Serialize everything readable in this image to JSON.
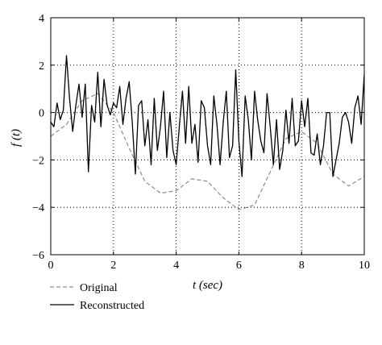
{
  "chart_data": {
    "type": "line",
    "xlabel": "t (sec)",
    "ylabel": "f (t)",
    "xlim": [
      0,
      10
    ],
    "ylim": [
      -6,
      4
    ],
    "x_ticks": [
      "0",
      "2",
      "4",
      "6",
      "8",
      "10"
    ],
    "y_ticks": [
      "4",
      "2",
      "0",
      "−2",
      "−4",
      "−6"
    ],
    "grid": true,
    "legend_placement": "below-left",
    "series": [
      {
        "name": "Original",
        "style": "dashed",
        "color": "#8c8c8c",
        "x": [
          0,
          0.5,
          1,
          1.5,
          2,
          2.5,
          3,
          3.5,
          4,
          4.5,
          5,
          5.5,
          6,
          6.5,
          7,
          7.5,
          8,
          8.5,
          9,
          9.5,
          10
        ],
        "y": [
          -1.0,
          -0.5,
          0.5,
          0.8,
          0.0,
          -1.5,
          -2.9,
          -3.4,
          -3.3,
          -2.8,
          -2.9,
          -3.6,
          -4.1,
          -3.9,
          -2.5,
          -1.1,
          -0.8,
          -1.3,
          -2.6,
          -3.1,
          -2.7
        ]
      },
      {
        "name": "Reconstructed",
        "style": "solid",
        "color": "#000000",
        "x": [
          0,
          0.1,
          0.2,
          0.3,
          0.4,
          0.5,
          0.6,
          0.7,
          0.8,
          0.9,
          1.0,
          1.1,
          1.2,
          1.3,
          1.4,
          1.5,
          1.6,
          1.7,
          1.8,
          1.9,
          2.0,
          2.1,
          2.2,
          2.3,
          2.4,
          2.5,
          2.6,
          2.7,
          2.8,
          2.9,
          3.0,
          3.1,
          3.2,
          3.3,
          3.4,
          3.5,
          3.6,
          3.7,
          3.8,
          3.9,
          4.0,
          4.1,
          4.2,
          4.3,
          4.4,
          4.5,
          4.6,
          4.7,
          4.8,
          4.9,
          5.0,
          5.1,
          5.2,
          5.3,
          5.4,
          5.5,
          5.6,
          5.7,
          5.8,
          5.9,
          6.0,
          6.1,
          6.2,
          6.3,
          6.4,
          6.5,
          6.6,
          6.7,
          6.8,
          6.9,
          7.0,
          7.1,
          7.2,
          7.3,
          7.4,
          7.5,
          7.6,
          7.7,
          7.8,
          7.9,
          8.0,
          8.1,
          8.2,
          8.3,
          8.4,
          8.5,
          8.6,
          8.7,
          8.8,
          8.9,
          9.0,
          9.1,
          9.2,
          9.3,
          9.4,
          9.5,
          9.6,
          9.7,
          9.8,
          9.9,
          10.0
        ],
        "y": [
          -0.4,
          -0.6,
          0.4,
          -0.3,
          0.1,
          2.4,
          0.6,
          -0.8,
          0.3,
          1.2,
          -0.2,
          1.2,
          -2.5,
          0.3,
          -0.4,
          1.7,
          -0.6,
          1.4,
          0.3,
          -0.1,
          0.4,
          0.2,
          1.1,
          -0.5,
          0.6,
          1.3,
          -0.4,
          -2.6,
          0.3,
          0.5,
          -1.4,
          -0.3,
          -2.2,
          0.6,
          -1.6,
          -0.6,
          0.9,
          -1.9,
          0.0,
          -1.6,
          -2.2,
          -0.6,
          0.9,
          -1.3,
          1.1,
          -1.3,
          -0.5,
          -2.1,
          0.5,
          0.2,
          -1.4,
          -2.2,
          0.7,
          -0.5,
          -2.2,
          -0.4,
          0.9,
          -1.9,
          -1.4,
          1.8,
          -1.2,
          -2.7,
          0.7,
          -0.3,
          -2.0,
          0.9,
          -0.3,
          -1.2,
          -1.7,
          0.8,
          -0.6,
          -2.2,
          -0.3,
          -2.4,
          -1.6,
          0.1,
          -1.3,
          0.6,
          -1.4,
          -1.2,
          0.5,
          -0.6,
          0.6,
          -1.7,
          -1.8,
          -0.9,
          -2.2,
          -1.4,
          0.0,
          0.0,
          -2.7,
          -2.0,
          -1.3,
          -0.2,
          0.0,
          -0.4,
          -1.3,
          0.2,
          0.7,
          -0.5,
          1.6
        ]
      }
    ]
  }
}
